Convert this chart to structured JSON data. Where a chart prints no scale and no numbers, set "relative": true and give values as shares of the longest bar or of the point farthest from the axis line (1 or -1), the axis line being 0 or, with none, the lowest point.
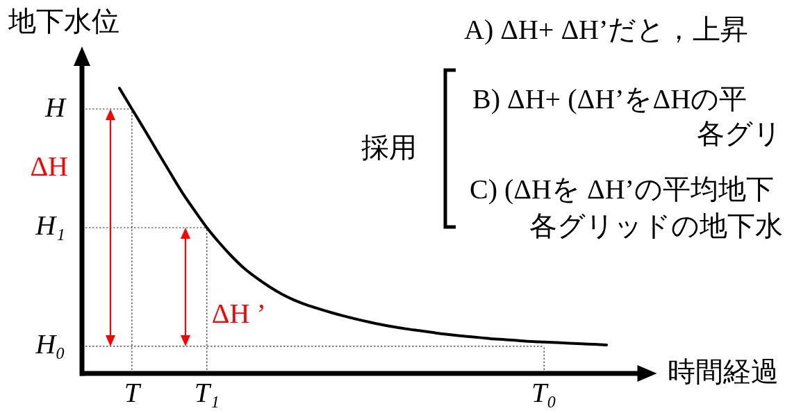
{
  "chart_data": {
    "type": "line",
    "xlabel": "時間経過",
    "ylabel": "地下水位",
    "categories": [
      null,
      null,
      null,
      null,
      "T",
      null,
      null,
      null,
      null,
      null,
      "T₁",
      null,
      null,
      null,
      null,
      null,
      null,
      null,
      null,
      null,
      null,
      null,
      null,
      null,
      null,
      null,
      null,
      null,
      null,
      null,
      null,
      null,
      null,
      null,
      null,
      null,
      null,
      "T₀",
      null,
      null,
      null,
      null,
      null,
      null,
      null,
      null,
      null
    ],
    "values": [
      null,
      null,
      null,
      1,
      0.927,
      0.855,
      0.781,
      0.708,
      0.636,
      0.572,
      0.511,
      0.458,
      0.41,
      0.368,
      0.334,
      0.304,
      0.278,
      0.257,
      0.24,
      0.226,
      0.213,
      0.201,
      0.19,
      0.18,
      0.171,
      0.163,
      0.156,
      0.15,
      0.144,
      0.138,
      0.133,
      0.129,
      0.125,
      0.121,
      0.118,
      0.115,
      0.112,
      0.11,
      0.108,
      0.106,
      0.104,
      0.102,
      0.1,
      null,
      null,
      null,
      null
    ],
    "color": "#000000",
    "relative": true,
    "marker": "none",
    "ref_lines": [
      {
        "axis": "y",
        "value": 0.927,
        "label": "H",
        "color": "#333333",
        "line_style": "dotted"
      },
      {
        "axis": "y",
        "value": 0.511,
        "label": "H₁",
        "color": "#333333",
        "line_style": "dotted"
      },
      {
        "axis": "y",
        "value": 0.095,
        "label": "H₀",
        "color": "#333333",
        "line_style": "dotted"
      },
      {
        "axis": "x",
        "value": "T",
        "color": "#333333",
        "line_style": "dotted"
      },
      {
        "axis": "x",
        "value": "T₁",
        "color": "#333333",
        "line_style": "dotted"
      },
      {
        "axis": "x",
        "value": "T₀",
        "color": "#333333",
        "line_style": "dotted"
      }
    ],
    "annotations": [
      "ΔH",
      "ΔH ’",
      "A) ΔH+ ΔH’だと，上昇",
      "採用",
      "B) ΔH+ (ΔH’をΔHの平",
      "各グリ",
      "C) (ΔHを ΔH’の平均地下",
      "各グリッドの地下水"
    ]
  }
}
